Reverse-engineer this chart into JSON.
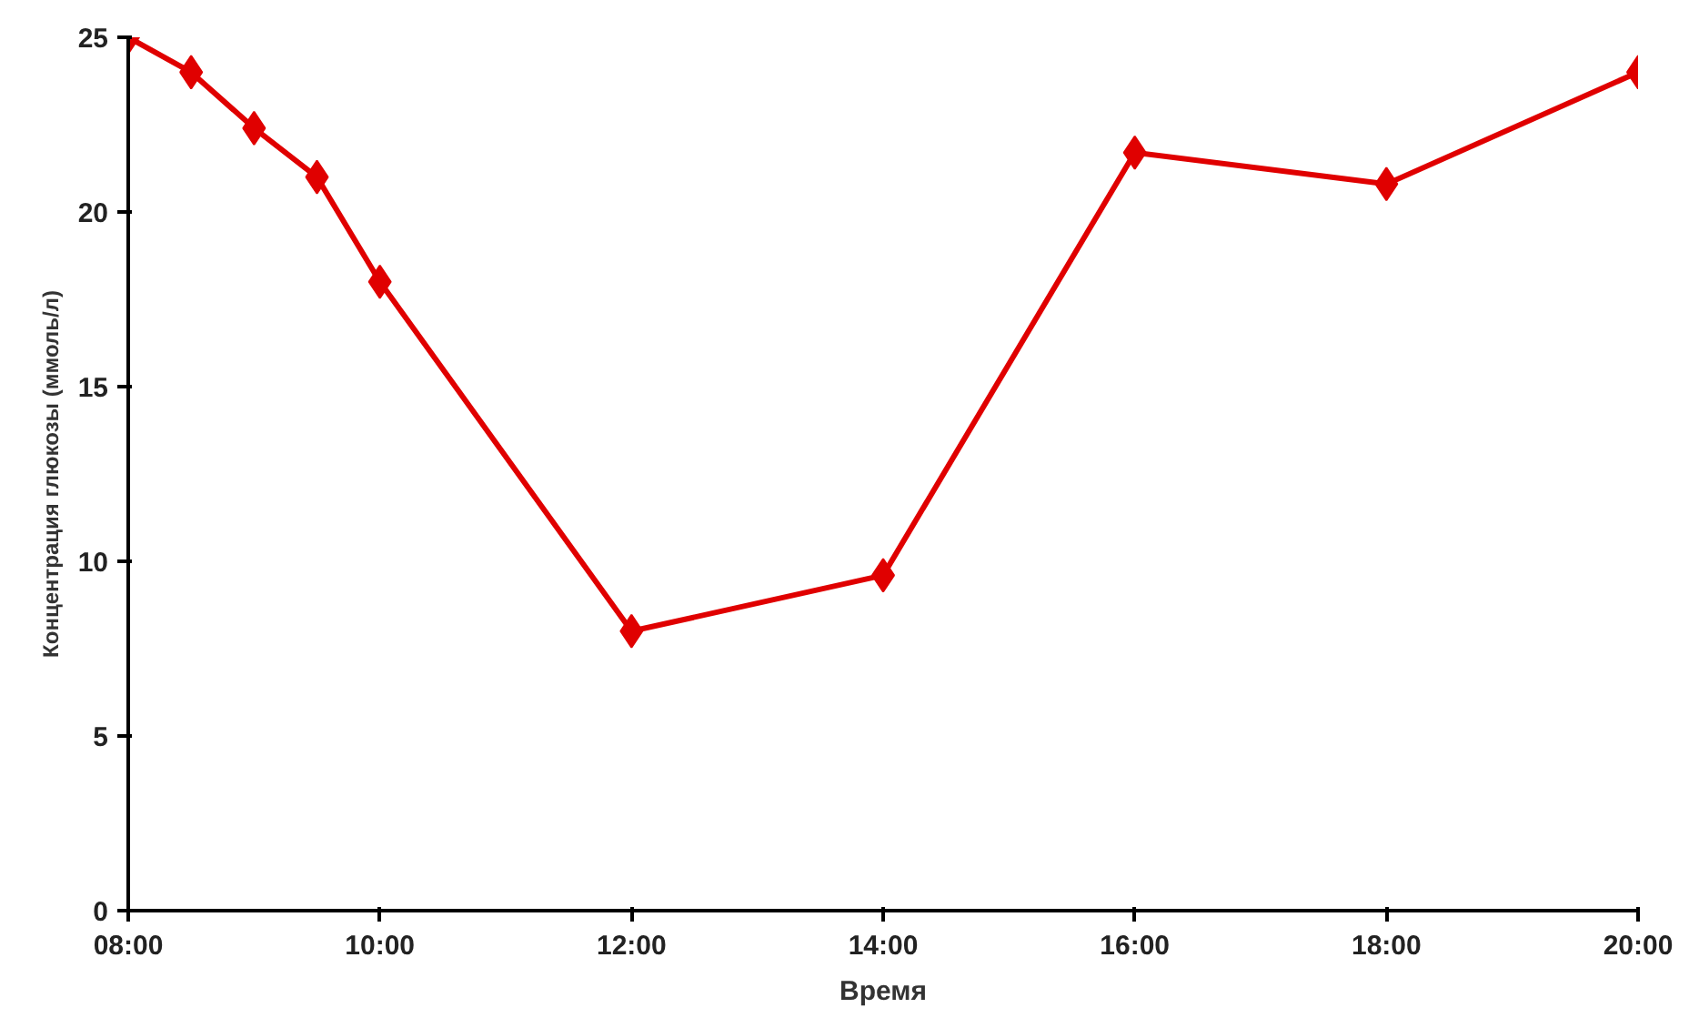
{
  "chart_data": {
    "type": "line",
    "xlabel": "Время",
    "ylabel": "Концентрация глюкозы (ммоль/л)",
    "x": [
      8,
      8.5,
      9,
      9.5,
      10,
      12,
      14,
      16,
      18,
      20
    ],
    "series": [
      {
        "color": "#e00000",
        "values": [
          25,
          24,
          22.4,
          21,
          18,
          8,
          9.6,
          21.7,
          20.8,
          24
        ]
      }
    ],
    "xlim": [
      8,
      20
    ],
    "ylim": [
      0,
      25
    ],
    "xticks": [
      {
        "value": 8,
        "label": "08:00"
      },
      {
        "value": 10,
        "label": "10:00"
      },
      {
        "value": 12,
        "label": "12:00"
      },
      {
        "value": 14,
        "label": "14:00"
      },
      {
        "value": 16,
        "label": "16:00"
      },
      {
        "value": 18,
        "label": "18:00"
      },
      {
        "value": 20,
        "label": "20:00"
      }
    ],
    "yticks": [
      0,
      5,
      10,
      15,
      20,
      25
    ],
    "grid": false,
    "marker": "diamond",
    "line_style": "solid"
  }
}
